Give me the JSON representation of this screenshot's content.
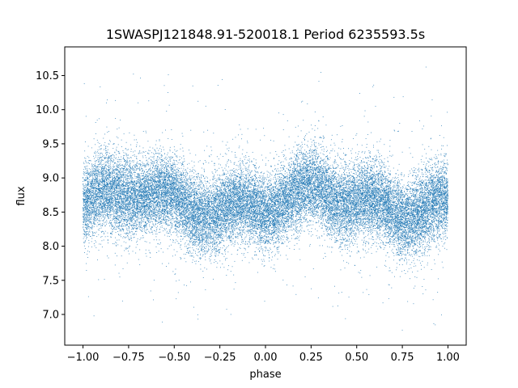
{
  "chart_data": {
    "type": "scatter",
    "title": "1SWASPJ121848.91-520018.1 Period 6235593.5s",
    "xlabel": "phase",
    "ylabel": "flux",
    "xlim": [
      -1.1,
      1.1
    ],
    "ylim": [
      6.55,
      10.92
    ],
    "x_ticks": [
      -1.0,
      -0.75,
      -0.5,
      -0.25,
      0.0,
      0.25,
      0.5,
      0.75,
      1.0
    ],
    "x_tick_labels": [
      "−1.00",
      "−0.75",
      "−0.50",
      "−0.25",
      "0.00",
      "0.25",
      "0.50",
      "0.75",
      "1.00"
    ],
    "y_ticks": [
      7.0,
      7.5,
      8.0,
      8.5,
      9.0,
      9.5,
      10.0,
      10.5
    ],
    "y_tick_labels": [
      "7.0",
      "7.5",
      "8.0",
      "8.5",
      "9.0",
      "9.5",
      "10.0",
      "10.5"
    ],
    "grid": false,
    "legend": "none",
    "marker_color": "#1f77b4",
    "series": [
      {
        "x_range": [
          -1.0,
          1.0
        ],
        "y_typical": [
          7.9,
          9.4
        ],
        "y_extreme": [
          6.75,
          10.7
        ],
        "approx_point_count": 28000,
        "y_median_profile": [
          [
            -1.0,
            8.6
          ],
          [
            -0.9,
            8.7
          ],
          [
            -0.8,
            8.75
          ],
          [
            -0.7,
            8.85
          ],
          [
            -0.65,
            8.8
          ],
          [
            -0.55,
            8.7
          ],
          [
            -0.45,
            8.6
          ],
          [
            -0.35,
            8.55
          ],
          [
            -0.25,
            8.5
          ],
          [
            -0.1,
            8.55
          ],
          [
            0.0,
            8.6
          ],
          [
            0.1,
            8.7
          ],
          [
            0.2,
            8.75
          ],
          [
            0.3,
            8.85
          ],
          [
            0.35,
            8.8
          ],
          [
            0.45,
            8.7
          ],
          [
            0.55,
            8.6
          ],
          [
            0.65,
            8.55
          ],
          [
            0.75,
            8.5
          ],
          [
            0.9,
            8.55
          ],
          [
            1.0,
            8.6
          ]
        ]
      }
    ]
  }
}
